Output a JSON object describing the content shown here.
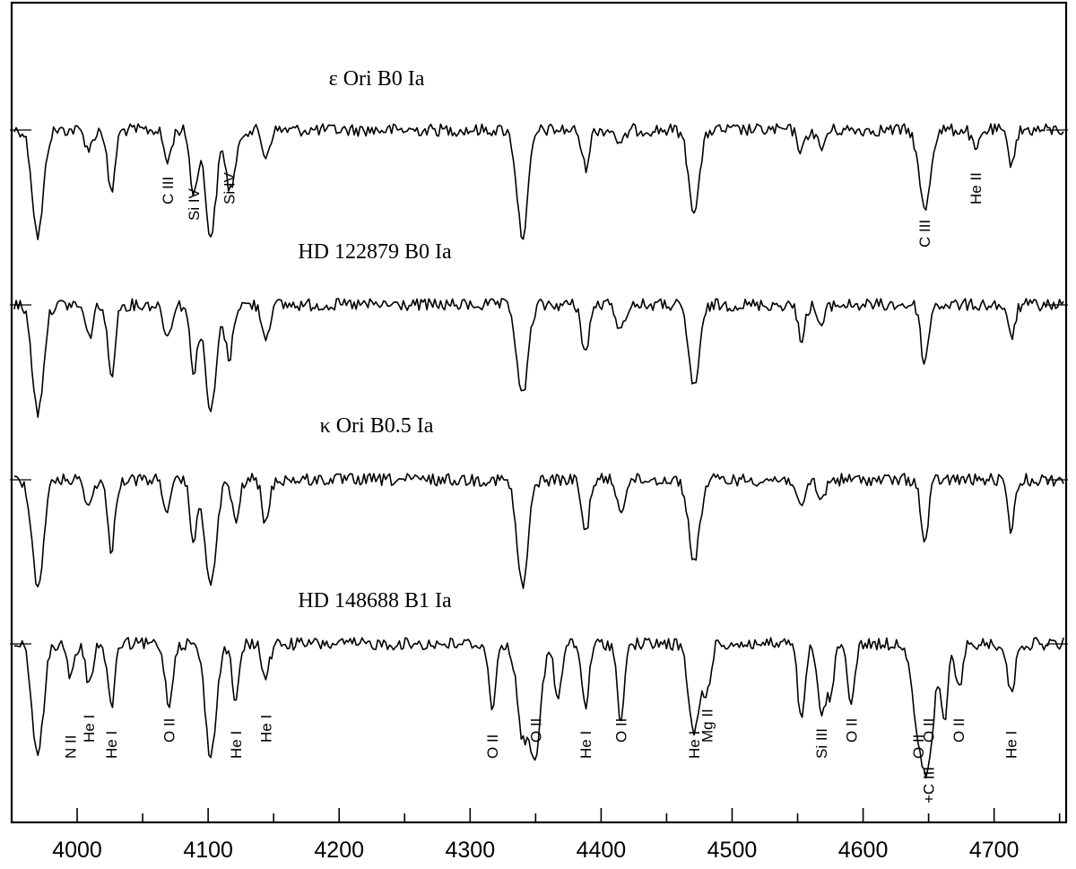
{
  "chart_data": {
    "type": "line",
    "xlabel": "",
    "ylabel": "",
    "xlim": [
      3950,
      4755
    ],
    "x_ticks": [
      4000,
      4100,
      4200,
      4300,
      4400,
      4500,
      4600,
      4700
    ],
    "x_tick_labels": [
      "4000",
      "4100",
      "4200",
      "4300",
      "4400",
      "4500",
      "4600",
      "4700"
    ],
    "minor_tick_step": 50,
    "grid": false,
    "series": [
      {
        "name": "ε Ori  B0 Ia",
        "lines": [
          {
            "x": 3970,
            "depth": 1.0
          },
          {
            "x": 4009,
            "depth": 0.18
          },
          {
            "x": 4026,
            "depth": 0.6
          },
          {
            "x": 4069,
            "depth": 0.3
          },
          {
            "x": 4089,
            "depth": 0.6
          },
          {
            "x": 4102,
            "depth": 1.0
          },
          {
            "x": 4116,
            "depth": 0.5
          },
          {
            "x": 4121,
            "depth": 0.25
          },
          {
            "x": 4144,
            "depth": 0.25
          },
          {
            "x": 4340,
            "depth": 1.0
          },
          {
            "x": 4388,
            "depth": 0.35
          },
          {
            "x": 4415,
            "depth": 0.15
          },
          {
            "x": 4471,
            "depth": 0.75
          },
          {
            "x": 4553,
            "depth": 0.2
          },
          {
            "x": 4568,
            "depth": 0.18
          },
          {
            "x": 4647,
            "depth": 0.75
          },
          {
            "x": 4686,
            "depth": 0.2
          },
          {
            "x": 4713,
            "depth": 0.3
          }
        ]
      },
      {
        "name": "HD 122879  B0 Ia",
        "lines": [
          {
            "x": 3970,
            "depth": 1.0
          },
          {
            "x": 4009,
            "depth": 0.3
          },
          {
            "x": 4026,
            "depth": 0.65
          },
          {
            "x": 4069,
            "depth": 0.3
          },
          {
            "x": 4089,
            "depth": 0.6
          },
          {
            "x": 4102,
            "depth": 1.0
          },
          {
            "x": 4116,
            "depth": 0.5
          },
          {
            "x": 4144,
            "depth": 0.3
          },
          {
            "x": 4340,
            "depth": 0.85
          },
          {
            "x": 4388,
            "depth": 0.45
          },
          {
            "x": 4415,
            "depth": 0.25
          },
          {
            "x": 4471,
            "depth": 0.75
          },
          {
            "x": 4553,
            "depth": 0.3
          },
          {
            "x": 4568,
            "depth": 0.2
          },
          {
            "x": 4647,
            "depth": 0.55
          },
          {
            "x": 4713,
            "depth": 0.3
          }
        ]
      },
      {
        "name": "κ Ori  B0.5 Ia",
        "lines": [
          {
            "x": 3970,
            "depth": 1.0
          },
          {
            "x": 4009,
            "depth": 0.25
          },
          {
            "x": 4026,
            "depth": 0.65
          },
          {
            "x": 4069,
            "depth": 0.3
          },
          {
            "x": 4089,
            "depth": 0.55
          },
          {
            "x": 4102,
            "depth": 1.0
          },
          {
            "x": 4121,
            "depth": 0.4
          },
          {
            "x": 4144,
            "depth": 0.4
          },
          {
            "x": 4340,
            "depth": 1.0
          },
          {
            "x": 4388,
            "depth": 0.5
          },
          {
            "x": 4415,
            "depth": 0.3
          },
          {
            "x": 4471,
            "depth": 0.75
          },
          {
            "x": 4553,
            "depth": 0.3
          },
          {
            "x": 4568,
            "depth": 0.2
          },
          {
            "x": 4647,
            "depth": 0.6
          },
          {
            "x": 4713,
            "depth": 0.45
          }
        ]
      },
      {
        "name": "HD 148688  B1 Ia",
        "lines": [
          {
            "x": 3970,
            "depth": 1.0
          },
          {
            "x": 3995,
            "depth": 0.3
          },
          {
            "x": 4009,
            "depth": 0.35
          },
          {
            "x": 4026,
            "depth": 0.55
          },
          {
            "x": 4070,
            "depth": 0.55
          },
          {
            "x": 4102,
            "depth": 1.0
          },
          {
            "x": 4121,
            "depth": 0.5
          },
          {
            "x": 4144,
            "depth": 0.3
          },
          {
            "x": 4317,
            "depth": 0.55
          },
          {
            "x": 4340,
            "depth": 0.8
          },
          {
            "x": 4350,
            "depth": 0.95
          },
          {
            "x": 4367,
            "depth": 0.5
          },
          {
            "x": 4388,
            "depth": 0.55
          },
          {
            "x": 4415,
            "depth": 0.65
          },
          {
            "x": 4471,
            "depth": 0.8
          },
          {
            "x": 4481,
            "depth": 0.4
          },
          {
            "x": 4553,
            "depth": 0.7
          },
          {
            "x": 4568,
            "depth": 0.65
          },
          {
            "x": 4575,
            "depth": 0.45
          },
          {
            "x": 4591,
            "depth": 0.5
          },
          {
            "x": 4642,
            "depth": 0.75
          },
          {
            "x": 4650,
            "depth": 1.0
          },
          {
            "x": 4662,
            "depth": 0.65
          },
          {
            "x": 4673,
            "depth": 0.4
          },
          {
            "x": 4713,
            "depth": 0.45
          }
        ]
      }
    ],
    "annotations": [
      {
        "text": "C III",
        "x": 4069,
        "series": 0
      },
      {
        "text": "Si IV",
        "x": 4089,
        "series": 0
      },
      {
        "text": "Si IV",
        "x": 4116,
        "series": 0
      },
      {
        "text": "C III",
        "x": 4647,
        "series": 0
      },
      {
        "text": "He II",
        "x": 4686,
        "series": 0
      },
      {
        "text": "N II",
        "x": 3995,
        "series": 3
      },
      {
        "text": "He I",
        "x": 4009,
        "series": 3
      },
      {
        "text": "He I",
        "x": 4026,
        "series": 3
      },
      {
        "text": "O II",
        "x": 4070,
        "series": 3
      },
      {
        "text": "He I",
        "x": 4121,
        "series": 3
      },
      {
        "text": "He I",
        "x": 4144,
        "series": 3
      },
      {
        "text": "O II",
        "x": 4317,
        "series": 3
      },
      {
        "text": "O II",
        "x": 4350,
        "series": 3
      },
      {
        "text": "He I",
        "x": 4388,
        "series": 3
      },
      {
        "text": "O II",
        "x": 4415,
        "series": 3
      },
      {
        "text": "He I",
        "x": 4471,
        "series": 3
      },
      {
        "text": "Mg II",
        "x": 4481,
        "series": 3
      },
      {
        "text": "Si III",
        "x": 4568,
        "series": 3
      },
      {
        "text": "O II",
        "x": 4591,
        "series": 3
      },
      {
        "text": "O II",
        "x": 4642,
        "series": 3
      },
      {
        "text": "O II",
        "x": 4650,
        "series": 3
      },
      {
        "text": "+C III",
        "x": 4650,
        "series": 3
      },
      {
        "text": "O II",
        "x": 4673,
        "series": 3
      },
      {
        "text": "He I",
        "x": 4713,
        "series": 3
      }
    ]
  }
}
